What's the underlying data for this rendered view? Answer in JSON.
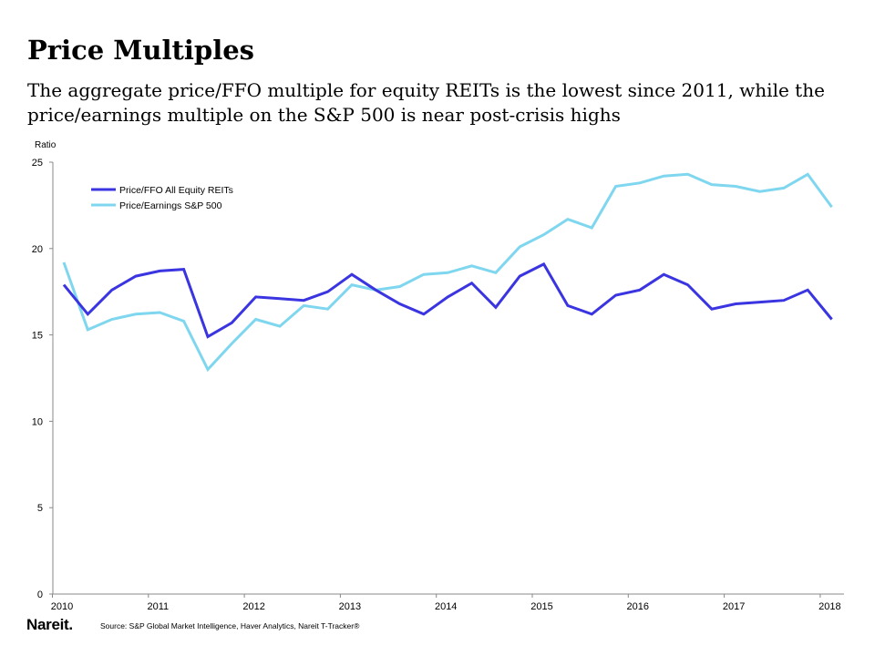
{
  "header": {
    "title": "Price Multiples",
    "subtitle": "The aggregate price/FFO multiple for equity REITs is the lowest since 2011, while the price/earnings multiple on the S&P 500 is near post-crisis highs"
  },
  "footer": {
    "logo": "Nareit.",
    "source": "Source: S&P Global Market Intelligence, Haver Analytics, Nareit T-Tracker®"
  },
  "chart_data": {
    "type": "line",
    "title": "",
    "xlabel": "",
    "ylabel": "Ratio",
    "ylim": [
      0,
      25
    ],
    "yticks": [
      "0",
      "5",
      "10",
      "15",
      "20",
      "25"
    ],
    "xticks": [
      "2010",
      "2011",
      "2012",
      "2013",
      "2014",
      "2015",
      "2016",
      "2017",
      "2018"
    ],
    "x_frequency": "quarterly, 2010 Q1 to 2018 Q1",
    "grid": false,
    "legend_position": "top-left",
    "series": [
      {
        "name": "Price/FFO All Equity REITs",
        "color": "#3a35e0",
        "values": [
          17.9,
          16.2,
          17.6,
          18.4,
          18.7,
          18.8,
          14.9,
          15.7,
          17.2,
          17.1,
          17.0,
          17.5,
          18.5,
          17.6,
          16.8,
          16.2,
          17.2,
          18.0,
          16.6,
          18.4,
          19.1,
          16.7,
          16.2,
          17.3,
          17.6,
          18.5,
          17.9,
          16.5,
          16.8,
          16.9,
          17.0,
          17.6,
          15.9
        ]
      },
      {
        "name": "Price/Earnings S&P 500",
        "color": "#7fd6ef",
        "values": [
          19.2,
          15.3,
          15.9,
          16.2,
          16.3,
          15.8,
          13.0,
          14.5,
          15.9,
          15.5,
          16.7,
          16.5,
          17.9,
          17.6,
          17.8,
          18.5,
          18.6,
          19.0,
          18.6,
          20.1,
          20.8,
          21.7,
          21.2,
          23.6,
          23.8,
          24.2,
          24.3,
          23.7,
          23.6,
          23.3,
          23.5,
          24.3,
          22.4
        ]
      }
    ]
  }
}
